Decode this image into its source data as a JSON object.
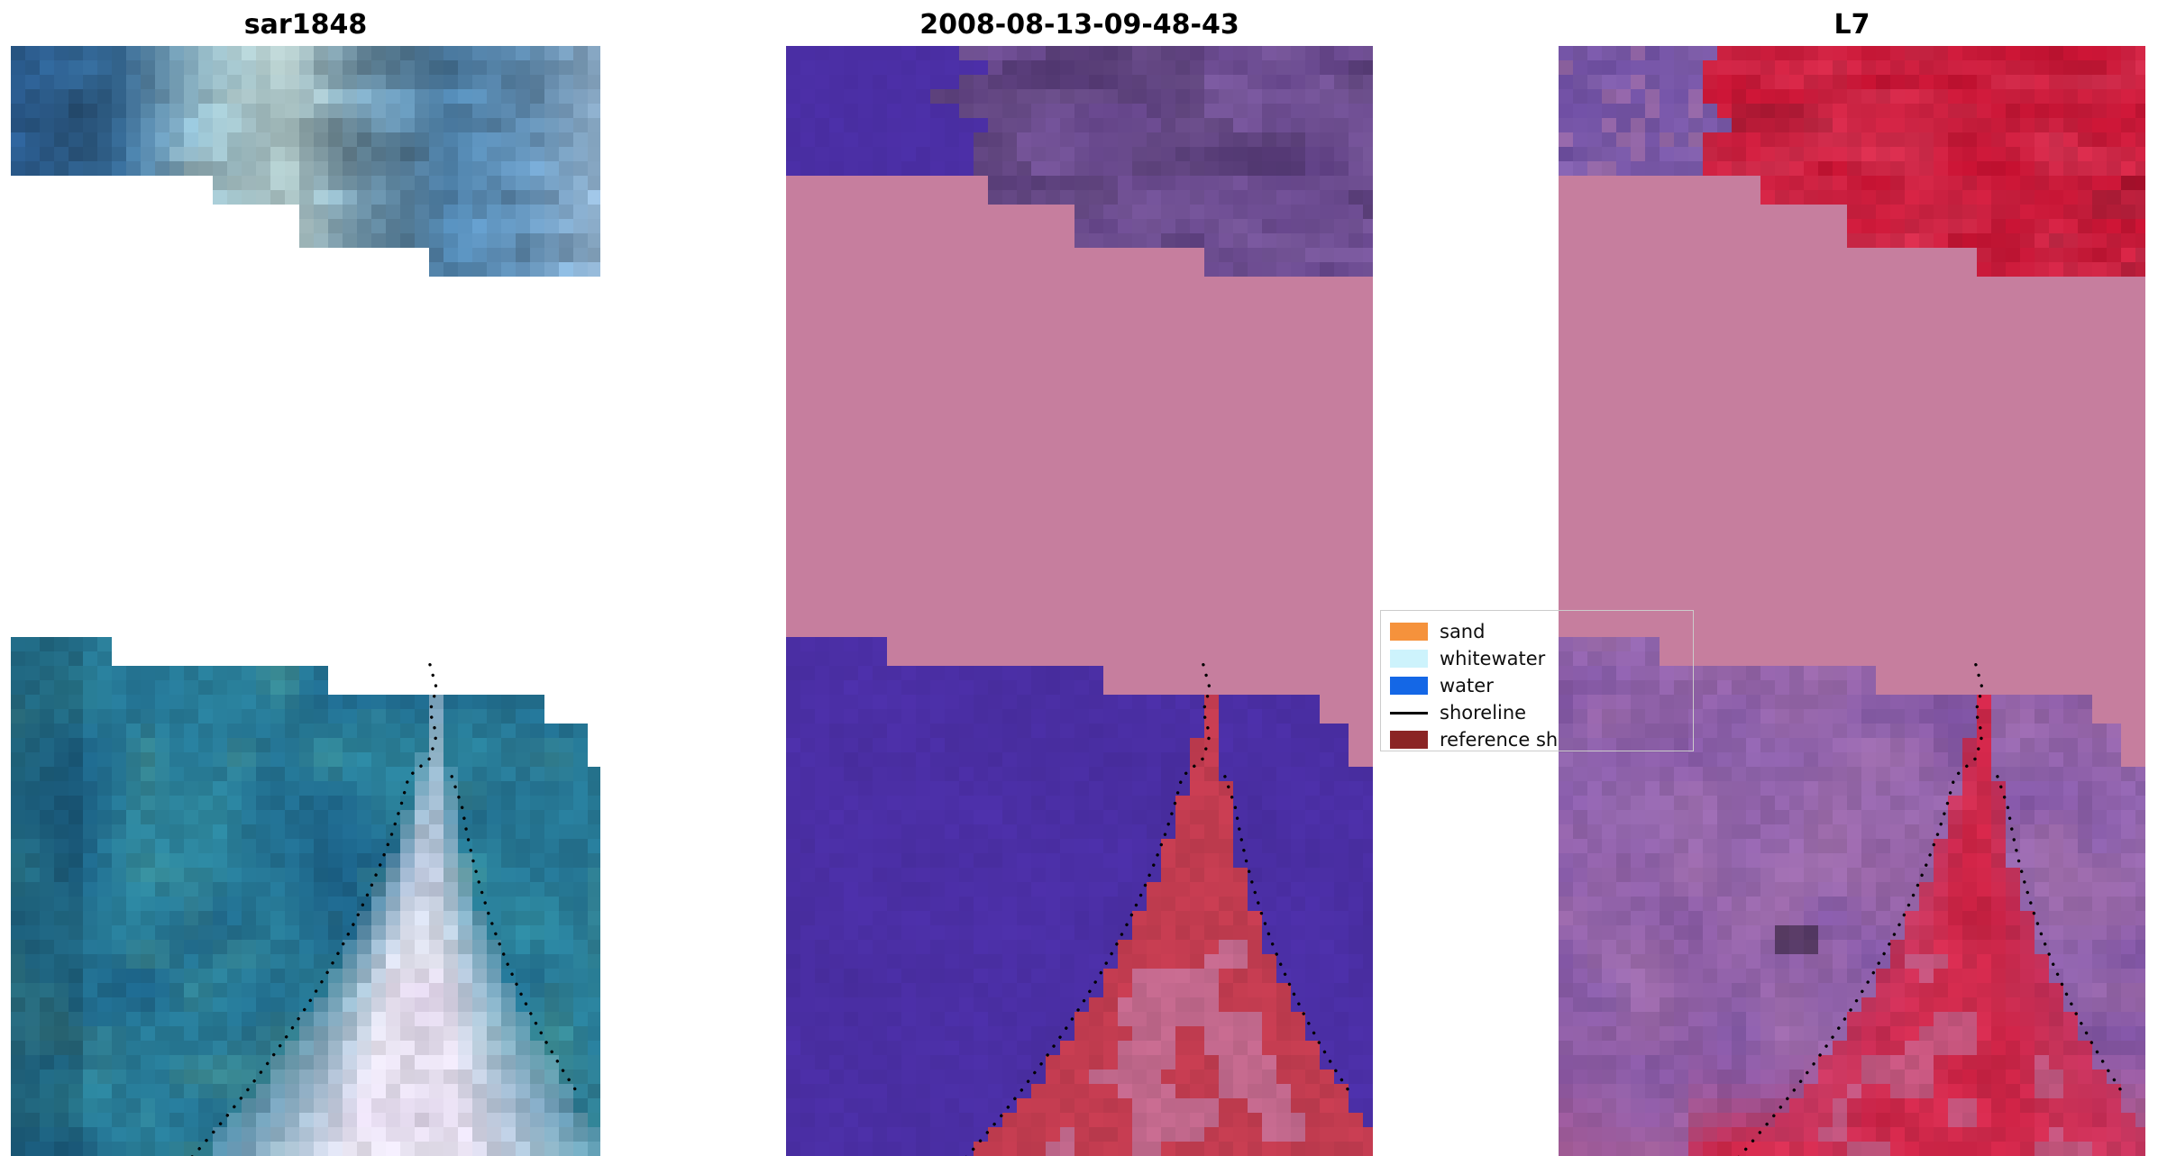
{
  "figure": {
    "background": "#ffffff",
    "panels": [
      {
        "id": "sar",
        "title": "sar1848"
      },
      {
        "id": "cls",
        "title": "2008-08-13-09-48-43"
      },
      {
        "id": "l7",
        "title": "L7"
      }
    ],
    "legend": {
      "border_color": "#cccccc",
      "items": [
        {
          "label": "sand",
          "type": "patch",
          "color": "#f5923c"
        },
        {
          "label": "whitewater",
          "type": "patch",
          "color": "#cdf3fc"
        },
        {
          "label": "water",
          "type": "patch",
          "color": "#1467e6"
        },
        {
          "label": "shoreline",
          "type": "line",
          "color": "#000000"
        },
        {
          "label": "reference sh",
          "type": "patch",
          "color": "#8b2525"
        }
      ]
    },
    "palette": {
      "pink": "#c67e9e",
      "shoreline_dot": "#000000",
      "sar_top_stops": [
        "#2a5a8c",
        "#33658f",
        "#8fb0ba",
        "#aec6c6",
        "#6f95ab",
        "#4a7aa0",
        "#5d89ad",
        "#8aa9c4"
      ],
      "sar_sea_dark": "#1c6288",
      "sar_sea_light": "#2f8aa0",
      "sar_green": "#4f9a8e",
      "sar_channel_light": "#ece9f4",
      "sar_channel_pink": "#dcd0e6",
      "cls_purple": "#4b2fa5",
      "cls_plum_dark": "#5f4084",
      "cls_plum_light": "#7b5a9e",
      "cls_red": "#c23c50",
      "cls_mauve": "#c177a0",
      "l7_top_purple_dark": "#6a4b9e",
      "l7_top_purple_light": "#8563ae",
      "l7_red_dark": "#c00f2e",
      "l7_red_light": "#d63050",
      "l7_bot_purple_dark": "#7b50a2",
      "l7_bot_purple_light": "#9167b2",
      "l7_bot_pink": "#b57aa6",
      "l7_channel_dark": "#c81f40",
      "l7_channel_light": "#d8365a"
    }
  },
  "chart_data": [
    {
      "type": "heatmap",
      "title": "sar1848",
      "description": "Pixelated SAR backscatter tile in blue/teal tones; two valid-data blocks (top strip and bottom block) separated by white nodata gap with stepped edges; bright white-lavender river-mouth channel widening toward bottom; black dotted shoreline contour along the channel edges.",
      "dominant_colors": [
        "#2a5a8c",
        "#2f8aa0",
        "#4f9a8e",
        "#ece9f4",
        "#ffffff"
      ],
      "annotations": [
        "dotted shoreline contour"
      ]
    },
    {
      "type": "heatmap",
      "title": "2008-08-13-09-48-43",
      "description": "Classified scene: purple water class, pink cloud/nodata fill between valid blocks, mottled plum cloud at top right, red reference-shoreline channel widening toward bottom with mauve patches, black dotted detected shoreline.",
      "dominant_colors": [
        "#4b2fa5",
        "#c67e9e",
        "#7b5a9e",
        "#c23c50"
      ],
      "annotations": [
        "dotted shoreline contour"
      ],
      "legend_entries": [
        "sand",
        "whitewater",
        "water",
        "shoreline",
        "reference sh"
      ],
      "legend_position": "right of panel, vertically centered"
    },
    {
      "type": "heatmap",
      "title": "L7",
      "description": "Landsat-7 false-colour tile: crimson land/vegetation at top right, mottled violet-purple water with pink speckle, pink nodata fill in the middle, red channel widening to a mostly-red bottom, black dotted shoreline contour.",
      "dominant_colors": [
        "#7b50a2",
        "#c00f2e",
        "#c67e9e",
        "#c81f40"
      ],
      "annotations": [
        "dotted shoreline contour"
      ]
    }
  ]
}
